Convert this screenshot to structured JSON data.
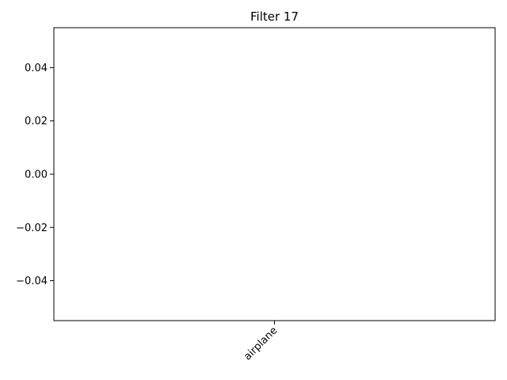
{
  "chart_data": {
    "type": "bar",
    "title": "Filter 17",
    "xlabel": "",
    "ylabel": "",
    "categories": [
      "airplane"
    ],
    "values": [
      0
    ],
    "ylim": [
      -0.055,
      0.055
    ],
    "yticks": [
      -0.04,
      -0.02,
      0.0,
      0.02,
      0.04
    ],
    "ytick_labels": [
      "−0.04",
      "−0.02",
      "0.00",
      "0.02",
      "0.04"
    ],
    "xtick_rotation": 45,
    "grid": false,
    "bar_color": "#1f77b4"
  }
}
